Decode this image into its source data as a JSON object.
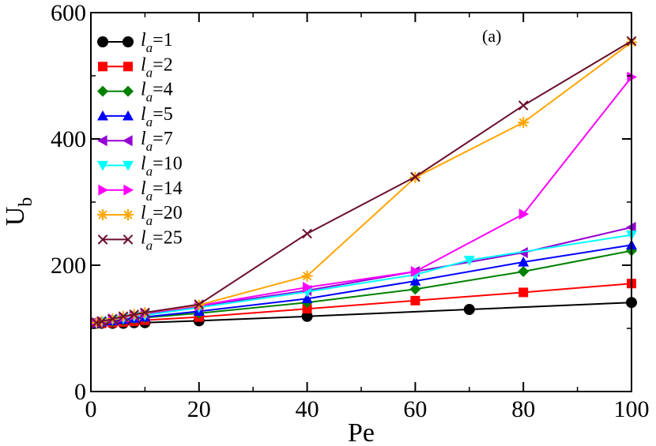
{
  "chart_data": {
    "type": "line",
    "title": "",
    "annotation": "(a)",
    "xlabel": "Pe",
    "ylabel": {
      "base": "U",
      "sub": "b"
    },
    "xlim": [
      0,
      100
    ],
    "ylim": [
      0,
      600
    ],
    "xticks": [
      0,
      20,
      40,
      60,
      80,
      100
    ],
    "yticks": [
      0,
      200,
      400,
      600
    ],
    "legend_position": "top-left",
    "series": [
      {
        "name": "l_a=1",
        "label_var": "l",
        "label_sub": "a",
        "label_val": "=1",
        "color": "#000000",
        "marker": "circle",
        "points": [
          [
            1,
            108
          ],
          [
            2,
            108
          ],
          [
            4,
            108
          ],
          [
            6,
            108
          ],
          [
            8,
            109
          ],
          [
            10,
            109
          ],
          [
            20,
            112
          ],
          [
            40,
            119
          ],
          [
            70,
            130
          ],
          [
            100,
            141
          ]
        ]
      },
      {
        "name": "l_a=2",
        "label_var": "l",
        "label_sub": "a",
        "label_val": "=2",
        "color": "#ff0000",
        "marker": "square",
        "points": [
          [
            1,
            108
          ],
          [
            2,
            108
          ],
          [
            4,
            109
          ],
          [
            6,
            110
          ],
          [
            8,
            111
          ],
          [
            10,
            113
          ],
          [
            20,
            118
          ],
          [
            40,
            131
          ],
          [
            60,
            144
          ],
          [
            80,
            157
          ],
          [
            100,
            171
          ]
        ]
      },
      {
        "name": "l_a=4",
        "label_var": "l",
        "label_sub": "a",
        "label_val": "=4",
        "color": "#008000",
        "marker": "diamond",
        "points": [
          [
            1,
            108
          ],
          [
            2,
            109
          ],
          [
            4,
            111
          ],
          [
            6,
            113
          ],
          [
            8,
            115
          ],
          [
            10,
            117
          ],
          [
            20,
            124
          ],
          [
            40,
            141
          ],
          [
            60,
            162
          ],
          [
            80,
            190
          ],
          [
            100,
            223
          ]
        ]
      },
      {
        "name": "l_a=5",
        "label_var": "l",
        "label_sub": "a",
        "label_val": "=5",
        "color": "#0000ff",
        "marker": "triangle-up",
        "points": [
          [
            1,
            108
          ],
          [
            2,
            110
          ],
          [
            4,
            112
          ],
          [
            6,
            114
          ],
          [
            8,
            116
          ],
          [
            10,
            118
          ],
          [
            20,
            127
          ],
          [
            40,
            147
          ],
          [
            60,
            175
          ],
          [
            80,
            205
          ],
          [
            100,
            232
          ]
        ]
      },
      {
        "name": "l_a=7",
        "label_var": "l",
        "label_sub": "a",
        "label_val": "=7",
        "color": "#9400d3",
        "marker": "triangle-left",
        "points": [
          [
            1,
            109
          ],
          [
            2,
            111
          ],
          [
            4,
            114
          ],
          [
            6,
            117
          ],
          [
            8,
            120
          ],
          [
            10,
            123
          ],
          [
            20,
            135
          ],
          [
            40,
            160
          ],
          [
            60,
            190
          ],
          [
            80,
            220
          ],
          [
            100,
            260
          ]
        ]
      },
      {
        "name": "l_a=10",
        "label_var": "l",
        "label_sub": "a",
        "label_val": "=10",
        "color": "#00ffff",
        "marker": "triangle-down",
        "points": [
          [
            1,
            109
          ],
          [
            2,
            111
          ],
          [
            4,
            114
          ],
          [
            6,
            116
          ],
          [
            8,
            119
          ],
          [
            10,
            121
          ],
          [
            20,
            133
          ],
          [
            40,
            158
          ],
          [
            60,
            185
          ],
          [
            70,
            208
          ],
          [
            100,
            248
          ]
        ]
      },
      {
        "name": "l_a=14",
        "label_var": "l",
        "label_sub": "a",
        "label_val": "=14",
        "color": "#ff00ff",
        "marker": "triangle-right",
        "points": [
          [
            1,
            109
          ],
          [
            2,
            111
          ],
          [
            4,
            115
          ],
          [
            6,
            118
          ],
          [
            8,
            121
          ],
          [
            10,
            124
          ],
          [
            20,
            136
          ],
          [
            40,
            165
          ],
          [
            60,
            190
          ],
          [
            80,
            281
          ],
          [
            100,
            498
          ]
        ]
      },
      {
        "name": "l_a=20",
        "label_var": "l",
        "label_sub": "a",
        "label_val": "=20",
        "color": "#ffa500",
        "marker": "asterisk",
        "points": [
          [
            1,
            109
          ],
          [
            2,
            111
          ],
          [
            4,
            115
          ],
          [
            6,
            119
          ],
          [
            8,
            122
          ],
          [
            10,
            125
          ],
          [
            20,
            137
          ],
          [
            40,
            183
          ],
          [
            60,
            339
          ],
          [
            80,
            426
          ],
          [
            100,
            553
          ]
        ]
      },
      {
        "name": "l_a=25",
        "label_var": "l",
        "label_sub": "a",
        "label_val": "=25",
        "color": "#6b0f2b",
        "marker": "x",
        "points": [
          [
            1,
            109
          ],
          [
            2,
            111
          ],
          [
            4,
            115
          ],
          [
            6,
            119
          ],
          [
            8,
            122
          ],
          [
            10,
            125
          ],
          [
            20,
            138
          ],
          [
            40,
            250
          ],
          [
            60,
            340
          ],
          [
            80,
            453
          ],
          [
            100,
            555
          ]
        ]
      }
    ]
  }
}
